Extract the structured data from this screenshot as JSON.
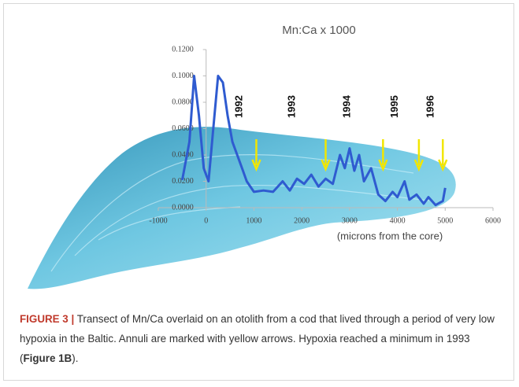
{
  "chart_data": {
    "type": "line",
    "title": "Mn:Ca x 1000",
    "x_label": "(microns from the core)",
    "x": [
      -500,
      -350,
      -250,
      -150,
      -50,
      50,
      150,
      250,
      350,
      450,
      550,
      650,
      750,
      850,
      1000,
      1200,
      1400,
      1600,
      1750,
      1900,
      2050,
      2200,
      2350,
      2500,
      2650,
      2800,
      2900,
      3000,
      3100,
      3200,
      3300,
      3450,
      3600,
      3750,
      3900,
      4000,
      4150,
      4250,
      4400,
      4550,
      4650,
      4800,
      4950,
      5000
    ],
    "series": [
      {
        "color": "#2f5bd0",
        "values": [
          0.021,
          0.05,
          0.1,
          0.07,
          0.03,
          0.02,
          0.06,
          0.1,
          0.095,
          0.07,
          0.05,
          0.04,
          0.03,
          0.02,
          0.012,
          0.013,
          0.012,
          0.02,
          0.013,
          0.022,
          0.018,
          0.025,
          0.016,
          0.022,
          0.018,
          0.04,
          0.03,
          0.045,
          0.028,
          0.04,
          0.02,
          0.03,
          0.01,
          0.005,
          0.012,
          0.008,
          0.02,
          0.006,
          0.01,
          0.003,
          0.008,
          0.002,
          0.005,
          0.015
        ]
      }
    ],
    "xlim": [
      -1000,
      6000
    ],
    "xticks": [
      -1000,
      0,
      1000,
      2000,
      3000,
      4000,
      5000,
      6000
    ],
    "ylim": [
      0,
      0.12
    ],
    "yticks": [
      {
        "value": 0,
        "label": "0.0000"
      },
      {
        "value": 0.02,
        "label": "0.0200"
      },
      {
        "value": 0.04,
        "label": "0.0400"
      },
      {
        "value": 0.06,
        "label": "0.0600"
      },
      {
        "value": 0.08,
        "label": "0.0800"
      },
      {
        "value": 0.1,
        "label": "0.1000"
      },
      {
        "value": 0.12,
        "label": "0.1200"
      }
    ],
    "annotations": [
      {
        "text": "1992",
        "x": 700
      },
      {
        "text": "1993",
        "x": 1800
      },
      {
        "text": "1994",
        "x": 2950
      },
      {
        "text": "1995",
        "x": 3950
      },
      {
        "text": "1996",
        "x": 4700
      }
    ],
    "arrows_x": [
      1050,
      2500,
      3700,
      4450,
      4950
    ],
    "arrow_color": "#f2e600"
  },
  "caption": {
    "label": "FIGURE 3 |",
    "text": "Transect of Mn/Ca overlaid on an otolith from a cod that lived through a period of very low hypoxia in the Baltic. Annuli are marked with yellow arrows. Hypoxia reached a minimum in 1993 (",
    "ref": "Figure 1B",
    "end": ")."
  }
}
